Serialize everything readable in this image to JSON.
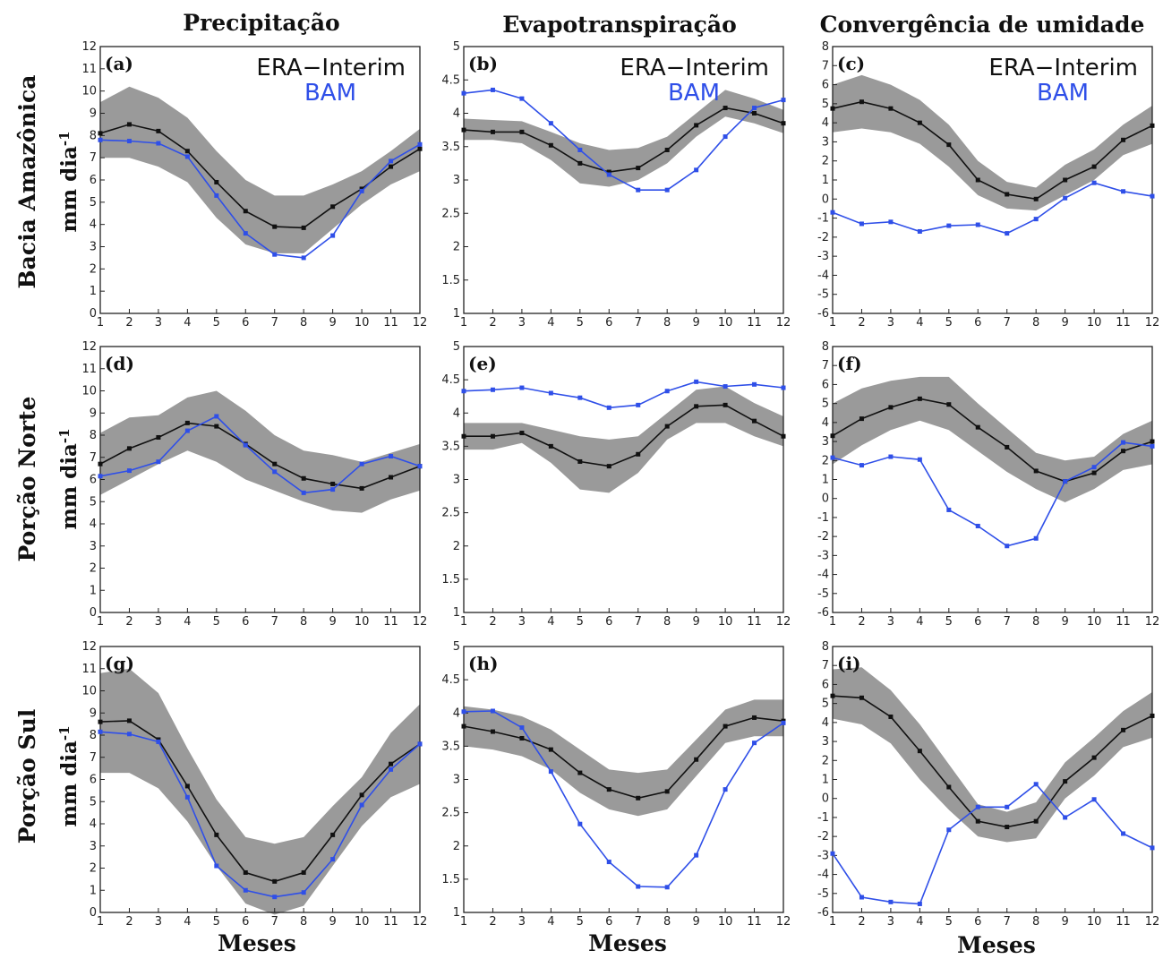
{
  "columns": [
    "Precipitação",
    "Evapotranspiração",
    "Convergência de umidade"
  ],
  "rows": [
    {
      "title": "Bacia Amazônica",
      "unit": "mm dia",
      "unit_sup": "-1"
    },
    {
      "title": "Porção Norte",
      "unit": "mm dia",
      "unit_sup": "-1"
    },
    {
      "title": "Porção Sul",
      "unit": "mm dia",
      "unit_sup": "-1"
    }
  ],
  "xlabel": "Meses",
  "legend": {
    "era": "ERA−Interim",
    "bam": "BAM"
  },
  "colors": {
    "era": "#111111",
    "bam": "#2f4fe8",
    "band": "#9a9a9a"
  },
  "chart_data": [
    {
      "panel": "(a)",
      "type": "line",
      "x": [
        1,
        2,
        3,
        4,
        5,
        6,
        7,
        8,
        9,
        10,
        11,
        12
      ],
      "ylim": [
        0,
        12
      ],
      "yticks": [
        "0",
        "1",
        "2",
        "3",
        "4",
        "5",
        "6",
        "7",
        "8",
        "9",
        "10",
        "11",
        "12"
      ],
      "legend": true,
      "series": [
        {
          "name": "ERA−Interim",
          "values": [
            8.1,
            8.5,
            8.2,
            7.3,
            5.9,
            4.6,
            3.9,
            3.85,
            4.8,
            5.6,
            6.6,
            7.4
          ]
        },
        {
          "name": "BAM",
          "values": [
            7.8,
            7.75,
            7.65,
            7.05,
            5.3,
            3.6,
            2.65,
            2.5,
            3.5,
            5.5,
            6.85,
            7.6
          ]
        }
      ],
      "band_lower": [
        7.0,
        7.0,
        6.6,
        5.9,
        4.3,
        3.1,
        2.7,
        2.7,
        3.8,
        4.9,
        5.8,
        6.4
      ],
      "band_upper": [
        9.5,
        10.2,
        9.7,
        8.8,
        7.3,
        6.0,
        5.3,
        5.3,
        5.8,
        6.4,
        7.3,
        8.3
      ]
    },
    {
      "panel": "(b)",
      "type": "line",
      "x": [
        1,
        2,
        3,
        4,
        5,
        6,
        7,
        8,
        9,
        10,
        11,
        12
      ],
      "ylim": [
        1,
        5
      ],
      "yticks": [
        "1",
        "1.5",
        "2",
        "2.5",
        "3",
        "3.5",
        "4",
        "4.5",
        "5"
      ],
      "legend": true,
      "series": [
        {
          "name": "ERA−Interim",
          "values": [
            3.75,
            3.72,
            3.72,
            3.52,
            3.25,
            3.12,
            3.18,
            3.45,
            3.82,
            4.08,
            4.0,
            3.85
          ]
        },
        {
          "name": "BAM",
          "values": [
            4.3,
            4.35,
            4.22,
            3.85,
            3.45,
            3.08,
            2.85,
            2.85,
            3.15,
            3.65,
            4.08,
            4.2
          ]
        }
      ],
      "band_lower": [
        3.6,
        3.6,
        3.55,
        3.3,
        2.95,
        2.9,
        3.0,
        3.25,
        3.65,
        3.95,
        3.85,
        3.7
      ],
      "band_upper": [
        3.92,
        3.9,
        3.88,
        3.72,
        3.55,
        3.45,
        3.48,
        3.65,
        4.0,
        4.35,
        4.22,
        4.05
      ]
    },
    {
      "panel": "(c)",
      "type": "line",
      "x": [
        1,
        2,
        3,
        4,
        5,
        6,
        7,
        8,
        9,
        10,
        11,
        12
      ],
      "ylim": [
        -6,
        8
      ],
      "yticks": [
        "-6",
        "-5",
        "-4",
        "-3",
        "-2",
        "-1",
        "0",
        "1",
        "2",
        "3",
        "4",
        "5",
        "6",
        "7",
        "8"
      ],
      "legend": true,
      "series": [
        {
          "name": "ERA−Interim",
          "values": [
            4.75,
            5.1,
            4.75,
            4.0,
            2.85,
            1.0,
            0.25,
            0.0,
            1.0,
            1.7,
            3.1,
            3.85
          ]
        },
        {
          "name": "BAM",
          "values": [
            -0.7,
            -1.3,
            -1.2,
            -1.7,
            -1.4,
            -1.35,
            -1.8,
            -1.05,
            0.05,
            0.85,
            0.4,
            0.15
          ]
        }
      ],
      "band_lower": [
        3.5,
        3.7,
        3.5,
        2.9,
        1.7,
        0.2,
        -0.5,
        -0.6,
        0.2,
        1.0,
        2.3,
        2.9
      ],
      "band_upper": [
        6.0,
        6.5,
        6.0,
        5.2,
        3.9,
        2.0,
        0.9,
        0.6,
        1.8,
        2.6,
        3.9,
        4.9
      ]
    },
    {
      "panel": "(d)",
      "type": "line",
      "x": [
        1,
        2,
        3,
        4,
        5,
        6,
        7,
        8,
        9,
        10,
        11,
        12
      ],
      "ylim": [
        0,
        12
      ],
      "yticks": [
        "0",
        "1",
        "2",
        "3",
        "4",
        "5",
        "6",
        "7",
        "8",
        "9",
        "10",
        "11",
        "12"
      ],
      "legend": false,
      "series": [
        {
          "name": "ERA−Interim",
          "values": [
            6.7,
            7.4,
            7.9,
            8.55,
            8.4,
            7.6,
            6.7,
            6.05,
            5.8,
            5.6,
            6.1,
            6.6
          ]
        },
        {
          "name": "BAM",
          "values": [
            6.15,
            6.4,
            6.8,
            8.2,
            8.85,
            7.55,
            6.35,
            5.4,
            5.55,
            6.7,
            7.05,
            6.6
          ]
        }
      ],
      "band_lower": [
        5.3,
        6.0,
        6.7,
        7.3,
        6.8,
        6.0,
        5.5,
        5.0,
        4.6,
        4.5,
        5.1,
        5.5
      ],
      "band_upper": [
        8.1,
        8.8,
        8.9,
        9.7,
        10.0,
        9.1,
        8.0,
        7.3,
        7.1,
        6.8,
        7.2,
        7.6
      ]
    },
    {
      "panel": "(e)",
      "type": "line",
      "x": [
        1,
        2,
        3,
        4,
        5,
        6,
        7,
        8,
        9,
        10,
        11,
        12
      ],
      "ylim": [
        1,
        5
      ],
      "yticks": [
        "1",
        "1.5",
        "2",
        "2.5",
        "3",
        "3.5",
        "4",
        "4.5",
        "5"
      ],
      "legend": false,
      "series": [
        {
          "name": "ERA−Interim",
          "values": [
            3.65,
            3.65,
            3.7,
            3.5,
            3.27,
            3.2,
            3.38,
            3.8,
            4.1,
            4.12,
            3.88,
            3.65
          ]
        },
        {
          "name": "BAM",
          "values": [
            4.33,
            4.35,
            4.38,
            4.3,
            4.23,
            4.08,
            4.12,
            4.33,
            4.47,
            4.4,
            4.43,
            4.38
          ]
        }
      ],
      "band_lower": [
        3.45,
        3.45,
        3.55,
        3.25,
        2.85,
        2.8,
        3.1,
        3.6,
        3.85,
        3.85,
        3.65,
        3.5
      ],
      "band_upper": [
        3.85,
        3.85,
        3.85,
        3.75,
        3.65,
        3.6,
        3.65,
        4.0,
        4.35,
        4.4,
        4.15,
        3.95
      ]
    },
    {
      "panel": "(f)",
      "type": "line",
      "x": [
        1,
        2,
        3,
        4,
        5,
        6,
        7,
        8,
        9,
        10,
        11,
        12
      ],
      "ylim": [
        -6,
        8
      ],
      "yticks": [
        "-6",
        "-5",
        "-4",
        "-3",
        "-2",
        "-1",
        "0",
        "1",
        "2",
        "3",
        "4",
        "5",
        "6",
        "7",
        "8"
      ],
      "legend": false,
      "series": [
        {
          "name": "ERA−Interim",
          "values": [
            3.3,
            4.2,
            4.8,
            5.25,
            4.95,
            3.75,
            2.7,
            1.45,
            0.9,
            1.35,
            2.5,
            3.0
          ]
        },
        {
          "name": "BAM",
          "values": [
            2.15,
            1.75,
            2.2,
            2.05,
            -0.6,
            -1.45,
            -2.5,
            -2.1,
            0.9,
            1.65,
            2.95,
            2.75
          ]
        }
      ],
      "band_lower": [
        1.8,
        2.8,
        3.6,
        4.1,
        3.6,
        2.5,
        1.4,
        0.5,
        -0.2,
        0.5,
        1.5,
        1.8
      ],
      "band_upper": [
        5.0,
        5.8,
        6.2,
        6.4,
        6.4,
        5.0,
        3.7,
        2.4,
        2.0,
        2.2,
        3.4,
        4.1
      ]
    },
    {
      "panel": "(g)",
      "type": "line",
      "x": [
        1,
        2,
        3,
        4,
        5,
        6,
        7,
        8,
        9,
        10,
        11,
        12
      ],
      "ylim": [
        0,
        12
      ],
      "yticks": [
        "0",
        "1",
        "2",
        "3",
        "4",
        "5",
        "6",
        "7",
        "8",
        "9",
        "10",
        "11",
        "12"
      ],
      "legend": false,
      "series": [
        {
          "name": "ERA−Interim",
          "values": [
            8.6,
            8.65,
            7.8,
            5.7,
            3.5,
            1.8,
            1.4,
            1.8,
            3.5,
            5.3,
            6.7,
            7.6
          ]
        },
        {
          "name": "BAM",
          "values": [
            8.15,
            8.05,
            7.7,
            5.2,
            2.1,
            1.0,
            0.7,
            0.9,
            2.4,
            4.85,
            6.45,
            7.6
          ]
        }
      ],
      "band_lower": [
        6.3,
        6.3,
        5.6,
        4.1,
        2.1,
        0.4,
        -0.1,
        0.3,
        2.1,
        3.9,
        5.2,
        5.8
      ],
      "band_upper": [
        10.8,
        11.0,
        9.9,
        7.4,
        5.1,
        3.4,
        3.1,
        3.4,
        4.8,
        6.1,
        8.1,
        9.4
      ]
    },
    {
      "panel": "(h)",
      "type": "line",
      "x": [
        1,
        2,
        3,
        4,
        5,
        6,
        7,
        8,
        9,
        10,
        11,
        12
      ],
      "ylim": [
        1,
        5
      ],
      "yticks": [
        "1",
        "1.5",
        "2",
        "2.5",
        "3",
        "3.5",
        "4",
        "4.5",
        "5"
      ],
      "legend": false,
      "series": [
        {
          "name": "ERA−Interim",
          "values": [
            3.8,
            3.72,
            3.62,
            3.45,
            3.1,
            2.85,
            2.72,
            2.82,
            3.3,
            3.8,
            3.93,
            3.88
          ]
        },
        {
          "name": "BAM",
          "values": [
            4.02,
            4.03,
            3.78,
            3.12,
            2.33,
            1.76,
            1.39,
            1.38,
            1.86,
            2.85,
            3.55,
            3.85
          ]
        }
      ],
      "band_lower": [
        3.5,
        3.45,
        3.35,
        3.15,
        2.8,
        2.55,
        2.45,
        2.55,
        3.05,
        3.55,
        3.65,
        3.65
      ],
      "band_upper": [
        4.1,
        4.05,
        3.95,
        3.75,
        3.45,
        3.15,
        3.1,
        3.15,
        3.6,
        4.05,
        4.2,
        4.2
      ]
    },
    {
      "panel": "(i)",
      "type": "line",
      "x": [
        1,
        2,
        3,
        4,
        5,
        6,
        7,
        8,
        9,
        10,
        11,
        12
      ],
      "ylim": [
        -6,
        8
      ],
      "yticks": [
        "-6",
        "-5",
        "-4",
        "-3",
        "-2",
        "-1",
        "0",
        "1",
        "2",
        "3",
        "4",
        "5",
        "6",
        "7",
        "8"
      ],
      "legend": false,
      "series": [
        {
          "name": "ERA−Interim",
          "values": [
            5.4,
            5.3,
            4.3,
            2.5,
            0.6,
            -1.2,
            -1.5,
            -1.2,
            0.9,
            2.15,
            3.6,
            4.35
          ]
        },
        {
          "name": "BAM",
          "values": [
            -2.9,
            -5.2,
            -5.45,
            -5.55,
            -1.65,
            -0.45,
            -0.45,
            0.75,
            -1.0,
            -0.05,
            -1.85,
            -2.6
          ]
        }
      ],
      "band_lower": [
        4.2,
        3.9,
        2.9,
        1.0,
        -0.6,
        -2.0,
        -2.3,
        -2.1,
        0.0,
        1.2,
        2.7,
        3.2
      ],
      "band_upper": [
        6.8,
        6.9,
        5.7,
        3.9,
        1.8,
        -0.3,
        -0.7,
        -0.2,
        1.9,
        3.2,
        4.6,
        5.6
      ]
    }
  ]
}
